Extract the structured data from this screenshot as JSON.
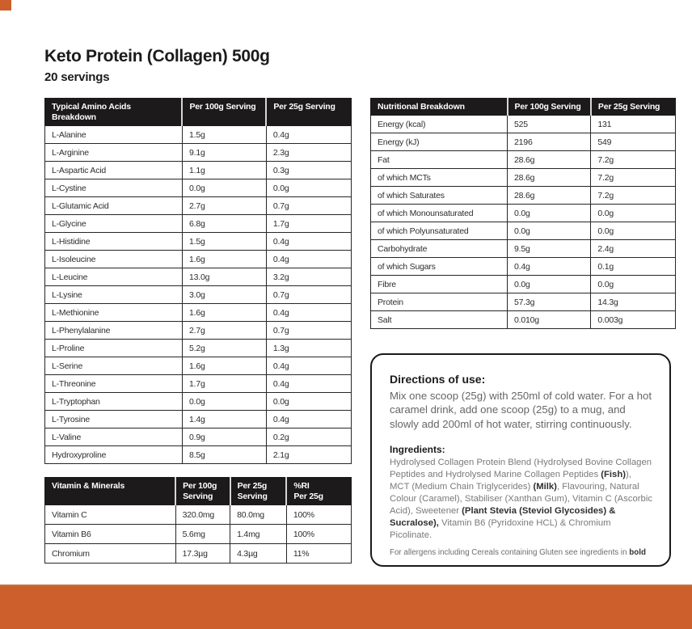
{
  "page": {
    "title": "Keto Protein (Collagen) 500g",
    "subtitle": "20 servings"
  },
  "colors": {
    "accent_orange": "#CC5F2B",
    "header_black": "#1D1A1B"
  },
  "amino_table": {
    "headers": [
      "Typical Amino Acids Breakdown",
      "Per 100g Serving",
      "Per 25g Serving"
    ],
    "rows": [
      [
        "L-Alanine",
        "1.5g",
        "0.4g"
      ],
      [
        "L-Arginine",
        "9.1g",
        "2.3g"
      ],
      [
        "L-Aspartic Acid",
        "1.1g",
        "0.3g"
      ],
      [
        "L-Cystine",
        "0.0g",
        "0.0g"
      ],
      [
        "L-Glutamic Acid",
        "2.7g",
        "0.7g"
      ],
      [
        "L-Glycine",
        "6.8g",
        "1.7g"
      ],
      [
        "L-Histidine",
        "1.5g",
        "0.4g"
      ],
      [
        "L-Isoleucine",
        "1.6g",
        "0.4g"
      ],
      [
        "L-Leucine",
        "13.0g",
        "3.2g"
      ],
      [
        "L-Lysine",
        "3.0g",
        "0.7g"
      ],
      [
        "L-Methionine",
        "1.6g",
        "0.4g"
      ],
      [
        "L-Phenylalanine",
        "2.7g",
        "0.7g"
      ],
      [
        "L-Proline",
        "5.2g",
        "1.3g"
      ],
      [
        "L-Serine",
        "1.6g",
        "0.4g"
      ],
      [
        "L-Threonine",
        "1.7g",
        "0.4g"
      ],
      [
        "L-Tryptophan",
        "0.0g",
        "0.0g"
      ],
      [
        "L-Tyrosine",
        "1.4g",
        "0.4g"
      ],
      [
        "L-Valine",
        "0.9g",
        "0.2g"
      ],
      [
        "Hydroxyproline",
        "8.5g",
        "2.1g"
      ]
    ]
  },
  "nutrition_table": {
    "headers": [
      "Nutritional Breakdown",
      "Per 100g Serving",
      "Per 25g Serving"
    ],
    "rows": [
      [
        "Energy (kcal)",
        "525",
        "131"
      ],
      [
        "Energy (kJ)",
        "2196",
        "549"
      ],
      [
        "Fat",
        "28.6g",
        "7.2g"
      ],
      [
        "of which MCTs",
        "28.6g",
        "7.2g"
      ],
      [
        "of which Saturates",
        "28.6g",
        "7.2g"
      ],
      [
        "of which Monounsaturated",
        "0.0g",
        "0.0g"
      ],
      [
        "of which Polyunsaturated",
        "0.0g",
        "0.0g"
      ],
      [
        "Carbohydrate",
        "9.5g",
        "2.4g"
      ],
      [
        "of which Sugars",
        "0.4g",
        "0.1g"
      ],
      [
        "Fibre",
        "0.0g",
        "0.0g"
      ],
      [
        "Protein",
        "57.3g",
        "14.3g"
      ],
      [
        "Salt",
        "0.010g",
        "0.003g"
      ]
    ]
  },
  "vitamins_table": {
    "headers": [
      "Vitamin & Minerals",
      "Per 100g\nServing",
      "Per 25g\nServing",
      "%RI\nPer 25g"
    ],
    "rows": [
      [
        "Vitamin C",
        "320.0mg",
        "80.0mg",
        "100%"
      ],
      [
        "Vitamin B6",
        "5.6mg",
        "1.4mg",
        "100%"
      ],
      [
        "Chromium",
        "17.3µg",
        "4.3µg",
        "11%"
      ]
    ]
  },
  "info_box": {
    "directions_heading": "Directions of use:",
    "directions_text": "Mix one scoop (25g) with 250ml of cold water. For a hot caramel drink, add one scoop (25g) to a mug, and slowly add 200ml of hot water, stirring continuously.",
    "ingredients_heading": "Ingredients:",
    "ingredients_segments": [
      {
        "text": "Hydrolysed Collagen Protein Blend (Hydrolysed Bovine Collagen Peptides and Hydrolysed Marine Collagen Peptides ",
        "bold": false
      },
      {
        "text": "(Fish)",
        "bold": true
      },
      {
        "text": "), MCT (Medium Chain Triglycerides) ",
        "bold": false
      },
      {
        "text": "(Milk)",
        "bold": true
      },
      {
        "text": ", Flavouring, Natural Colour (Caramel), Stabiliser (Xanthan Gum), Vitamin C (Ascorbic Acid), Sweetener ",
        "bold": false
      },
      {
        "text": "(Plant Stevia (Steviol Glycosides) & Sucralose),",
        "bold": true
      },
      {
        "text": " Vitamin B6 (Pyridoxine HCL) & Chromium Picolinate.",
        "bold": false
      }
    ],
    "allergen_segments": [
      {
        "text": "For allergens including Cereals containing Gluten see ingredients in ",
        "bold": false
      },
      {
        "text": "bold",
        "bold": true
      }
    ]
  }
}
